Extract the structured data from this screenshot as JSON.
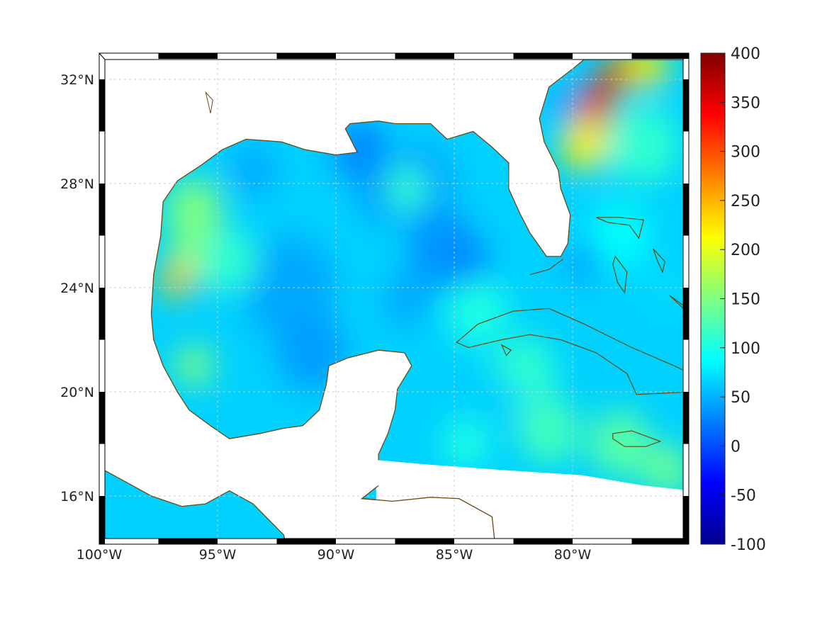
{
  "chart_data": {
    "type": "heatmap",
    "title": "",
    "xlabel": "",
    "ylabel": "",
    "xlim": [
      -100,
      -75.1
    ],
    "ylim": [
      14.15,
      33.0
    ],
    "x_ticks": [
      {
        "value": -100,
        "label": "100°W"
      },
      {
        "value": -95,
        "label": "95°W"
      },
      {
        "value": -90,
        "label": "90°W"
      },
      {
        "value": -85,
        "label": "85°W"
      },
      {
        "value": -80,
        "label": "80°W"
      }
    ],
    "y_ticks": [
      {
        "value": 32,
        "label": "32°N"
      },
      {
        "value": 28,
        "label": "28°N"
      },
      {
        "value": 24,
        "label": "24°N"
      },
      {
        "value": 20,
        "label": "20°N"
      },
      {
        "value": 16,
        "label": "16°N"
      }
    ],
    "grid": true,
    "colormap": "jet",
    "colorbar": {
      "range": [
        -100,
        400
      ],
      "placement": "right",
      "ticks": [
        {
          "value": 400,
          "label": "400"
        },
        {
          "value": 350,
          "label": "350"
        },
        {
          "value": 300,
          "label": "300"
        },
        {
          "value": 250,
          "label": "250"
        },
        {
          "value": 200,
          "label": "200"
        },
        {
          "value": 150,
          "label": "150"
        },
        {
          "value": 100,
          "label": "100"
        },
        {
          "value": 50,
          "label": "50"
        },
        {
          "value": 0,
          "label": "0"
        },
        {
          "value": -50,
          "label": "-50"
        },
        {
          "value": -100,
          "label": "-100"
        }
      ]
    },
    "background_value": 65,
    "features": [
      {
        "lon": -89,
        "lat": 29.3,
        "value": 30,
        "r": 1.2
      },
      {
        "lon": -86.5,
        "lat": 28,
        "value": 40,
        "r": 1.5
      },
      {
        "lon": -88,
        "lat": 27.5,
        "value": 35,
        "r": 1
      },
      {
        "lon": -85.5,
        "lat": 25.5,
        "value": 35,
        "r": 1.5
      },
      {
        "lon": -84.5,
        "lat": 25,
        "value": 30,
        "r": 1
      },
      {
        "lon": -92,
        "lat": 24,
        "value": 45,
        "r": 2
      },
      {
        "lon": -91,
        "lat": 21.5,
        "value": 40,
        "r": 1.5
      },
      {
        "lon": -87,
        "lat": 23.5,
        "value": 45,
        "r": 1
      },
      {
        "lon": -93.5,
        "lat": 28.5,
        "value": 45,
        "r": 1
      },
      {
        "lon": -96,
        "lat": 27,
        "value": 150,
        "r": 1.2
      },
      {
        "lon": -96,
        "lat": 25.5,
        "value": 150,
        "r": 1
      },
      {
        "lon": -96.7,
        "lat": 24.3,
        "value": 240,
        "r": 0.7
      },
      {
        "lon": -96,
        "lat": 21,
        "value": 150,
        "r": 0.8
      },
      {
        "lon": -94.5,
        "lat": 25,
        "value": 110,
        "r": 1.2
      },
      {
        "lon": -87,
        "lat": 27.8,
        "value": 110,
        "r": 0.9
      },
      {
        "lon": -84,
        "lat": 23,
        "value": 100,
        "r": 1.3
      },
      {
        "lon": -82,
        "lat": 20.8,
        "value": 110,
        "r": 1.3
      },
      {
        "lon": -81,
        "lat": 18.5,
        "value": 120,
        "r": 1.3
      },
      {
        "lon": -78,
        "lat": 18,
        "value": 130,
        "r": 1.3
      },
      {
        "lon": -76,
        "lat": 17,
        "value": 140,
        "r": 1
      },
      {
        "lon": -79.5,
        "lat": 29.5,
        "value": 220,
        "r": 1
      },
      {
        "lon": -79,
        "lat": 31,
        "value": 300,
        "r": 0.8
      },
      {
        "lon": -78.7,
        "lat": 31.7,
        "value": 385,
        "r": 0.5
      },
      {
        "lon": -78,
        "lat": 32.3,
        "value": 290,
        "r": 0.7
      },
      {
        "lon": -76.8,
        "lat": 32.5,
        "value": 220,
        "r": 0.8
      },
      {
        "lon": -80.3,
        "lat": 31,
        "value": 30,
        "r": 0.6
      },
      {
        "lon": -77,
        "lat": 29.5,
        "value": 110,
        "r": 1.5
      },
      {
        "lon": -78,
        "lat": 26,
        "value": 90,
        "r": 1.3
      },
      {
        "lon": -79.5,
        "lat": 25,
        "value": 35,
        "r": 0.7
      },
      {
        "lon": -76,
        "lat": 24,
        "value": 70,
        "r": 1
      },
      {
        "lon": -83,
        "lat": 19.5,
        "value": 65,
        "r": 1
      },
      {
        "lon": -84.5,
        "lat": 18,
        "value": 100,
        "r": 1
      }
    ]
  },
  "colors": {
    "coastline": "#6b4a10",
    "grid": "#cccccc",
    "frame": "#000000"
  }
}
